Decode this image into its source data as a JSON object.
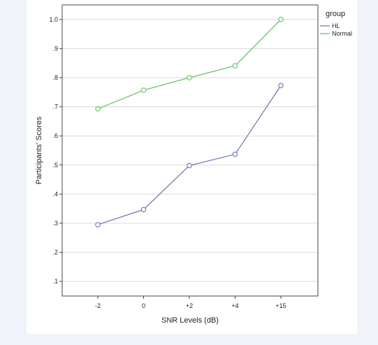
{
  "chart_data": {
    "type": "line",
    "categories": [
      "-2",
      "0",
      "+2",
      "+4",
      "+15"
    ],
    "xlabel": "SNR Levels (dB)",
    "ylabel": "Participants' Scores",
    "ylim": [
      0.05,
      1.05
    ],
    "y_ticks": [
      {
        "value": 0.1,
        "label": ".1"
      },
      {
        "value": 0.2,
        "label": ".2"
      },
      {
        "value": 0.3,
        "label": ".3"
      },
      {
        "value": 0.4,
        "label": ".4"
      },
      {
        "value": 0.5,
        "label": ".5"
      },
      {
        "value": 0.6,
        "label": ".6"
      },
      {
        "value": 0.7,
        "label": ".7"
      },
      {
        "value": 0.8,
        "label": ".8"
      },
      {
        "value": 0.9,
        "label": ".9"
      },
      {
        "value": 1.0,
        "label": "1.0"
      }
    ],
    "grid": true,
    "legend": {
      "title": "group",
      "position": "top-right"
    },
    "series": [
      {
        "name": "HL",
        "color": "#6670b4",
        "values": [
          0.295,
          0.347,
          0.498,
          0.537,
          0.773
        ]
      },
      {
        "name": "Normal",
        "color": "#5cc45c",
        "values": [
          0.693,
          0.757,
          0.8,
          0.841,
          1.0
        ]
      }
    ]
  }
}
